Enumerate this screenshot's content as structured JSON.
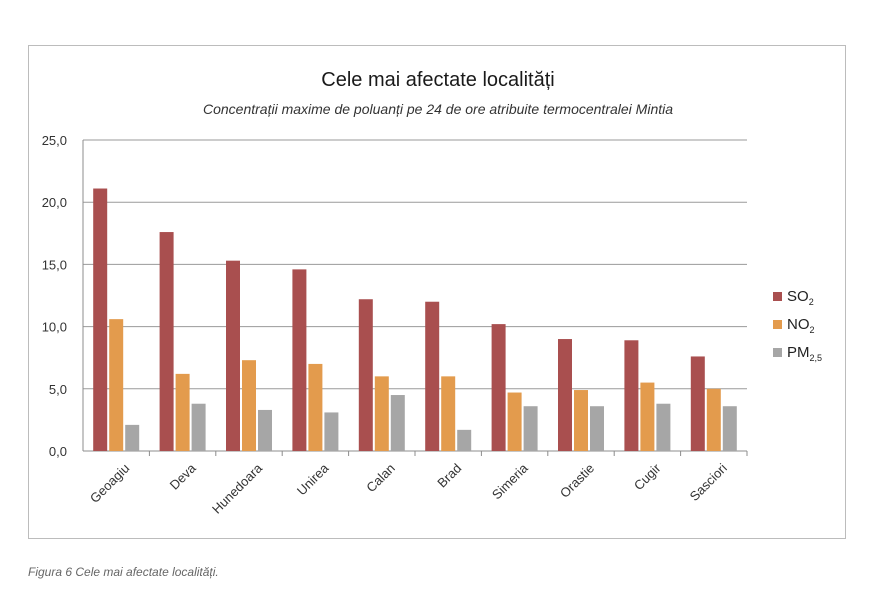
{
  "chart_data": {
    "type": "bar",
    "title": "Cele mai afectate localități",
    "subtitle": "Concentrații maxime de poluanți pe 24 de ore atribuite termocentralei Mintia",
    "xlabel": "",
    "ylabel": "",
    "ylim": [
      0,
      25
    ],
    "yticks": [
      "0,0",
      "5,0",
      "10,0",
      "15,0",
      "20,0",
      "25,0"
    ],
    "grid": true,
    "legend_position": "right",
    "categories": [
      "Geoagiu",
      "Deva",
      "Hunedoara",
      "Unirea",
      "Calan",
      "Brad",
      "Simeria",
      "Orastie",
      "Cugir",
      "Sasciori"
    ],
    "series": [
      {
        "name": "SO",
        "name_sub": "2",
        "color": "#a94f4f",
        "values": [
          21.1,
          17.6,
          15.3,
          14.6,
          12.2,
          12.0,
          10.2,
          9.0,
          8.9,
          7.6
        ]
      },
      {
        "name": "NO",
        "name_sub": "2",
        "color": "#e39b4d",
        "values": [
          10.6,
          6.2,
          7.3,
          7.0,
          6.0,
          6.0,
          4.7,
          4.9,
          5.5,
          5.0
        ]
      },
      {
        "name": "PM",
        "name_sub": "2,5",
        "color": "#a6a6a6",
        "values": [
          2.1,
          3.8,
          3.3,
          3.1,
          4.5,
          1.7,
          3.6,
          3.6,
          3.8,
          3.6
        ]
      }
    ]
  },
  "caption": "Figura 6 Cele mai afectate localități."
}
